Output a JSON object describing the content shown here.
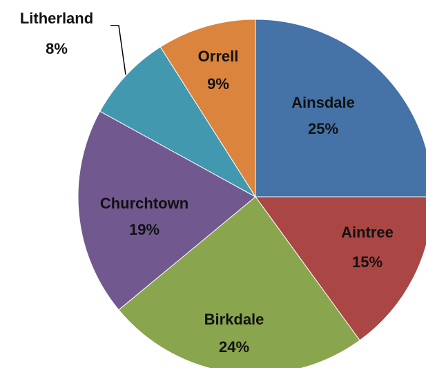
{
  "chart_data": {
    "type": "pie",
    "categories": [
      "Ainsdale",
      "Aintree",
      "Birkdale",
      "Churchtown",
      "Litherland",
      "Orrell"
    ],
    "values": [
      25,
      15,
      24,
      19,
      8,
      9
    ],
    "value_labels": [
      "25%",
      "15%",
      "24%",
      "19%",
      "8%",
      "9%"
    ],
    "colors": [
      "#4572a7",
      "#aa4643",
      "#89a54e",
      "#71588f",
      "#4198af",
      "#db843d"
    ]
  }
}
